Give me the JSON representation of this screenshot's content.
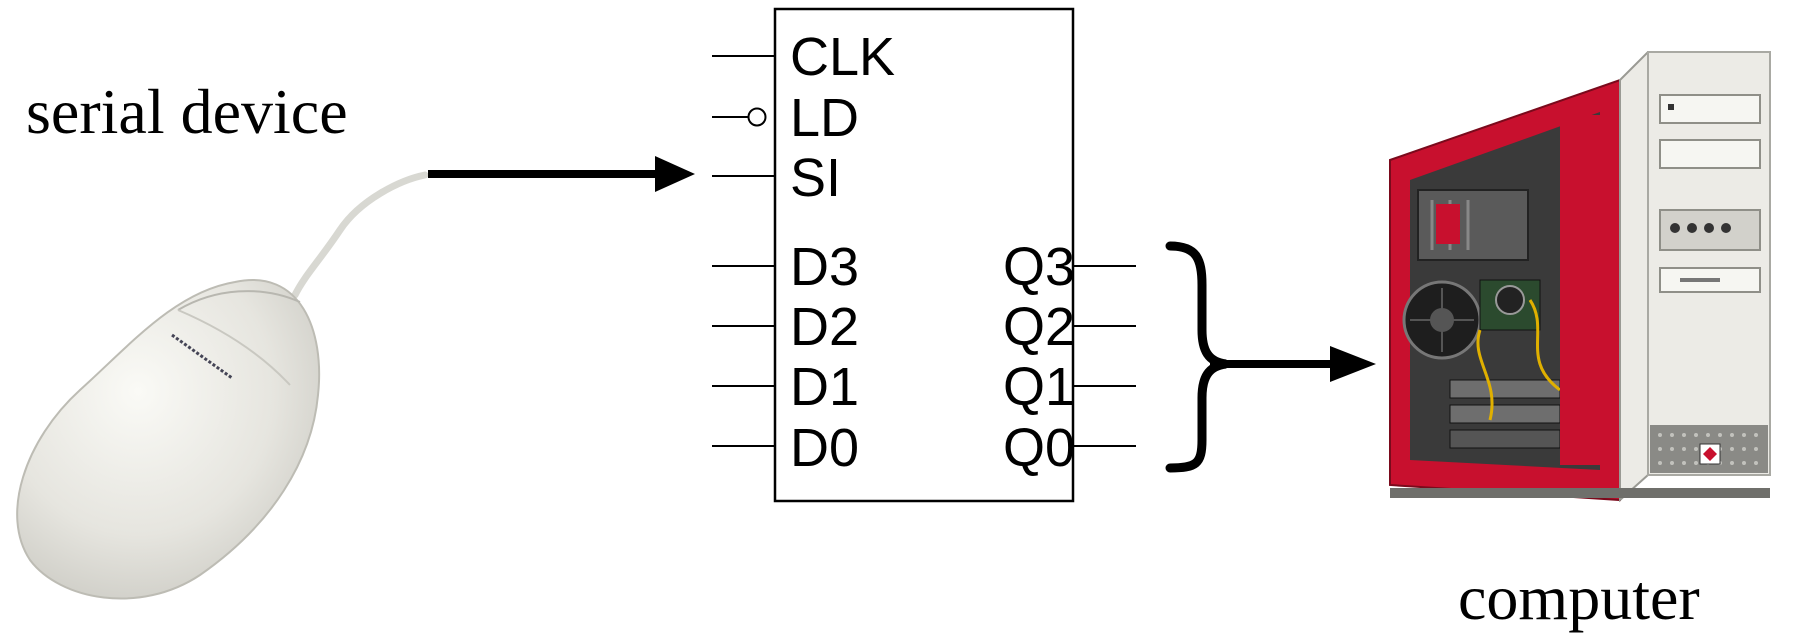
{
  "labels": {
    "serial_device": "serial device",
    "computer": "computer"
  },
  "register": {
    "control_pins": [
      "CLK",
      "LD",
      "SI"
    ],
    "inputs": [
      "D3",
      "D2",
      "D1",
      "D0"
    ],
    "outputs": [
      "Q3",
      "Q2",
      "Q1",
      "Q0"
    ]
  },
  "colors": {
    "line": "#000000",
    "mouse_body": "#e9e9e3",
    "case_red": "#c8102e",
    "case_panel": "#ecebe6"
  },
  "icons": {
    "mouse": "mouse-icon",
    "computer": "computer-tower-icon"
  }
}
